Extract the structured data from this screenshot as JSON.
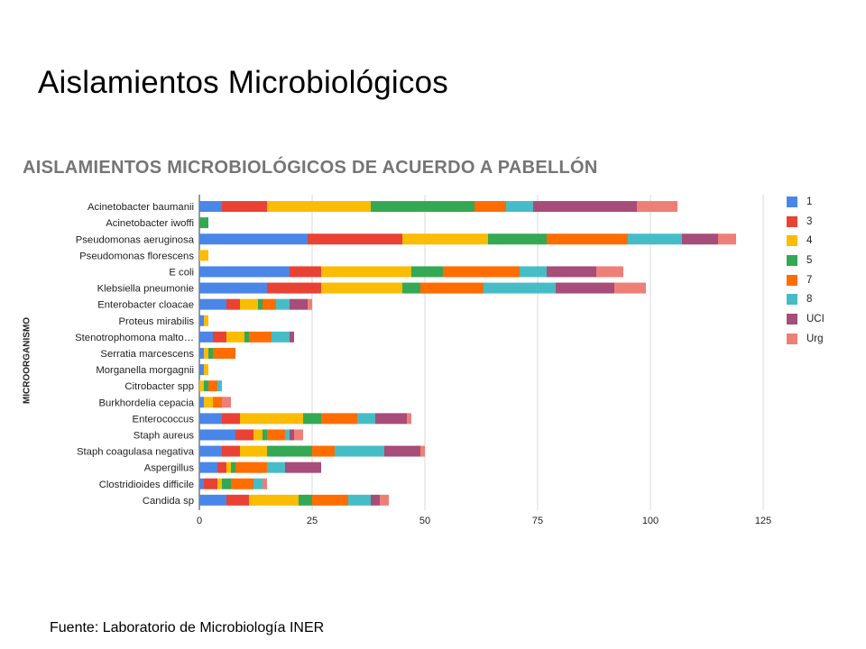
{
  "slide": {
    "title": "Aislamientos Microbiológicos",
    "footer": "Fuente: Laboratorio de Microbiología INER"
  },
  "chart_data": {
    "type": "bar",
    "orientation": "horizontal",
    "stacked": true,
    "title": "AISLAMIENTOS MICROBIOLÓGICOS DE ACUERDO A PABELLÓN",
    "ylabel": "MICROORGANISMO",
    "xlabel": "",
    "xlim": [
      0,
      125
    ],
    "xticks": [
      0,
      25,
      50,
      75,
      100,
      125
    ],
    "grid": true,
    "legend_position": "right",
    "categories": [
      "Acinetobacter baumanii",
      "Acinetobacter iwoffi",
      "Pseudomonas aeruginosa",
      "Pseudomonas florescens",
      "E coli",
      "Klebsiella pneumonie",
      "Enterobacter  cloacae",
      "Proteus mirabilis",
      "Stenotrophomona malto…",
      "Serratia marcescens",
      "Morganella morgagnii",
      "Citrobacter spp",
      "Burkhordelia cepacia",
      "Enterococcus",
      "Staph aureus",
      "Staph coagulasa negativa",
      "Aspergillus",
      "Clostridioides difficile",
      "Candida sp"
    ],
    "series": [
      {
        "name": "1",
        "color": "#4a86e8",
        "values": [
          5,
          0,
          24,
          0,
          20,
          15,
          6,
          1,
          3,
          1,
          1,
          0,
          1,
          5,
          8,
          5,
          4,
          1,
          6
        ]
      },
      {
        "name": "3",
        "color": "#e94235",
        "values": [
          10,
          0,
          21,
          0,
          7,
          12,
          3,
          0,
          3,
          0,
          0,
          0,
          0,
          4,
          4,
          4,
          2,
          3,
          5
        ]
      },
      {
        "name": "4",
        "color": "#fbbc04",
        "values": [
          23,
          0,
          19,
          2,
          20,
          18,
          4,
          1,
          4,
          1,
          1,
          1,
          2,
          14,
          2,
          6,
          1,
          1,
          11
        ]
      },
      {
        "name": "5",
        "color": "#34a853",
        "values": [
          23,
          2,
          13,
          0,
          7,
          4,
          1,
          0,
          1,
          1,
          0,
          1,
          0,
          4,
          1,
          10,
          1,
          2,
          3
        ]
      },
      {
        "name": "7",
        "color": "#ff6d01",
        "values": [
          7,
          0,
          18,
          0,
          17,
          14,
          3,
          0,
          5,
          5,
          0,
          2,
          2,
          8,
          4,
          5,
          7,
          5,
          8
        ]
      },
      {
        "name": "8",
        "color": "#46bdc6",
        "values": [
          6,
          0,
          12,
          0,
          6,
          16,
          3,
          0,
          4,
          0,
          0,
          1,
          0,
          4,
          1,
          11,
          4,
          2,
          5
        ]
      },
      {
        "name": "UCI",
        "color": "#a64d79",
        "values": [
          23,
          0,
          8,
          0,
          11,
          13,
          4,
          0,
          1,
          0,
          0,
          0,
          0,
          7,
          1,
          8,
          8,
          0,
          2
        ]
      },
      {
        "name": "Urg",
        "color": "#ee7f77",
        "values": [
          9,
          0,
          4,
          0,
          6,
          7,
          1,
          0,
          0,
          0,
          0,
          0,
          2,
          1,
          2,
          1,
          0,
          1,
          2
        ]
      }
    ]
  }
}
